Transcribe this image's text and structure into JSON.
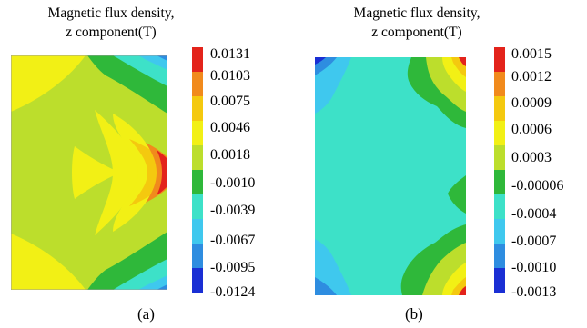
{
  "panels": [
    {
      "title_line1": "Magnetic flux density,",
      "title_line2": "z component(T)",
      "legend_values": [
        "0.0131",
        "0.0103",
        "0.0075",
        "0.0046",
        "0.0018",
        "-0.0010",
        "-0.0039",
        "-0.0067",
        "-0.0095",
        "-0.0124"
      ],
      "legend_colors": [
        "#e3231b",
        "#f18a1c",
        "#f4c90f",
        "#f2f015",
        "#bcde2c",
        "#2fb83a",
        "#3de1c8",
        "#3fc8ee",
        "#2e8de0",
        "#1a2fd4"
      ],
      "caption": "(a)"
    },
    {
      "title_line1": "Magnetic flux density,",
      "title_line2": "z component(T)",
      "legend_values": [
        "0.0015",
        "0.0012",
        "0.0009",
        "0.0006",
        "0.0003",
        "-0.00006",
        "-0.0004",
        "-0.0007",
        "-0.0010",
        "-0.0013"
      ],
      "legend_colors": [
        "#e3231b",
        "#f18a1c",
        "#f4c90f",
        "#f2f015",
        "#bcde2c",
        "#2fb83a",
        "#3de1c8",
        "#3fc8ee",
        "#2e8de0",
        "#1a2fd4"
      ],
      "caption": "(b)"
    }
  ]
}
